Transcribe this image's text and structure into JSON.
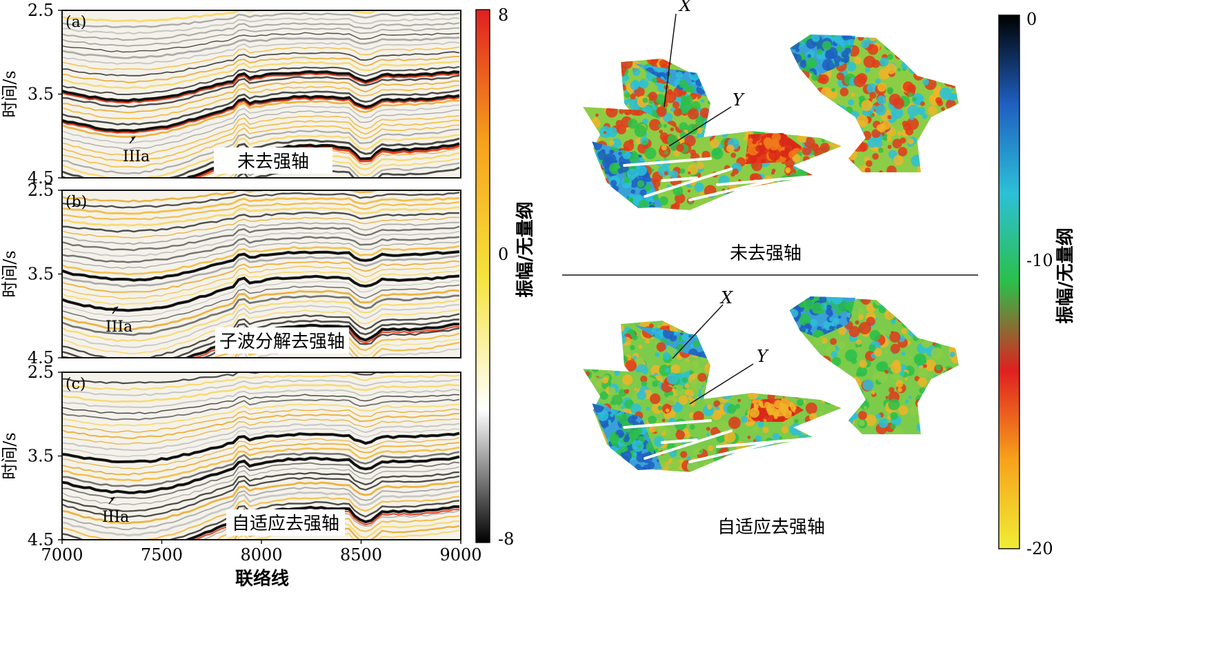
{
  "chart_data": [
    {
      "type": "heatmap",
      "subtype": "seismic-section-stack",
      "panels": [
        {
          "tag": "(a)",
          "caption": "未去强轴",
          "marker": "IIIa"
        },
        {
          "tag": "(b)",
          "caption": "子波分解去强轴",
          "marker": "IIIa"
        },
        {
          "tag": "(c)",
          "caption": "自适应去强轴",
          "marker": "IIIa"
        }
      ],
      "ylabel": "时间/s",
      "yticks": [
        "2.5",
        "3.5",
        "4.5"
      ],
      "ylim": [
        2.5,
        4.5
      ],
      "xlabel": "联络线",
      "xticks": [
        "7000",
        "7500",
        "8000",
        "8500",
        "9000"
      ],
      "xlim": [
        7000,
        9000
      ],
      "colorbar": {
        "label": "振幅/无量纲",
        "ticks": [
          "8",
          "0",
          "-8"
        ],
        "range": [
          -8,
          8
        ],
        "colors": [
          "#000000",
          "#ffffff",
          "#f5e33a",
          "#f7a21b",
          "#e02020"
        ]
      }
    },
    {
      "type": "heatmap",
      "subtype": "amplitude-map-pair",
      "panels": [
        {
          "caption": "未去强轴",
          "points": [
            "X",
            "Y"
          ]
        },
        {
          "caption": "自适应去强轴",
          "points": [
            "X",
            "Y"
          ]
        }
      ],
      "colorbar": {
        "label": "振幅/无量纲",
        "ticks": [
          "0",
          "-10",
          "-20"
        ],
        "range": [
          -20,
          0
        ],
        "colors": [
          "#f0ee35",
          "#f7a21b",
          "#e02020",
          "#2bbf4a",
          "#2cc0d8",
          "#1f5fc0",
          "#000000"
        ]
      }
    }
  ]
}
